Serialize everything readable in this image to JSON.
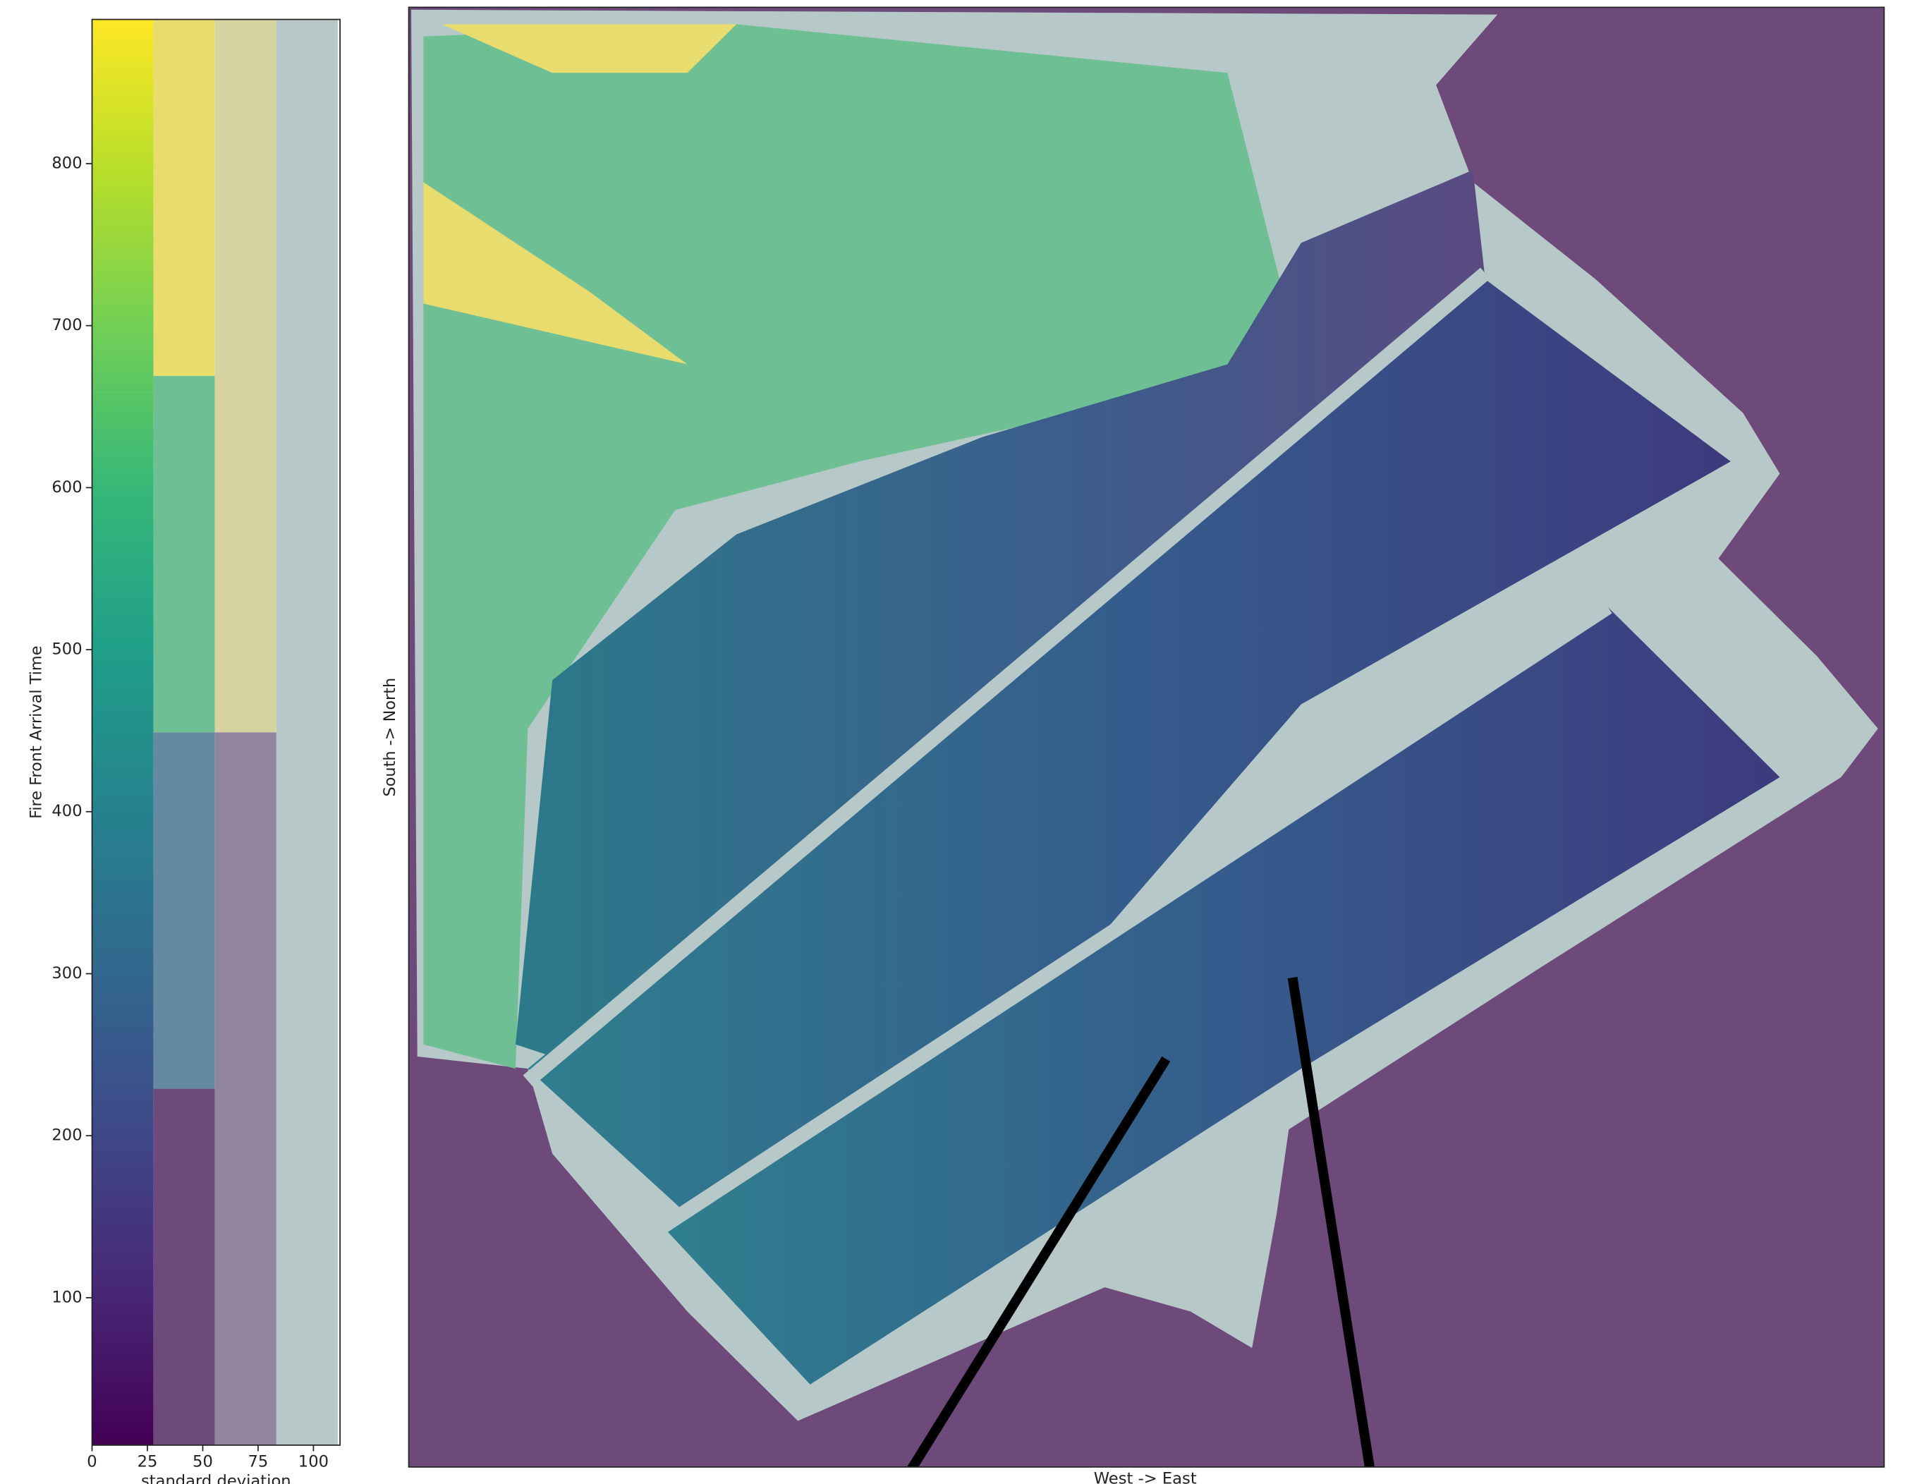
{
  "chart_data": [
    {
      "type": "bivariate_colorbar",
      "ylabel": "Fire Front Arrival Time",
      "xlabel": "standard deviation",
      "ylim": [
        9,
        889
      ],
      "yticks": [
        100,
        200,
        300,
        400,
        500,
        600,
        700,
        800
      ],
      "xlim": [
        0,
        112
      ],
      "xticks": [
        0,
        25,
        50,
        75,
        100
      ],
      "std_bins": [
        0,
        27.75,
        55.5,
        83.25,
        111
      ],
      "columns": [
        {
          "value_bins": [
            9,
            889
          ],
          "gradient": [
            "#440154",
            "#482878",
            "#3e4989",
            "#31688e",
            "#26828e",
            "#1f9e89",
            "#35b779",
            "#6ece58",
            "#b5de2b",
            "#fde725"
          ]
        },
        {
          "value_bins": [
            9,
            229,
            449,
            669,
            889
          ],
          "colors": [
            "#6d4a7a",
            "#6589a3",
            "#6ebf93",
            "#e8dc6f"
          ]
        },
        {
          "value_bins": [
            9,
            449,
            889
          ],
          "colors": [
            "#93849f",
            "#d6d3a0"
          ]
        },
        {
          "value_bins": [
            9,
            889
          ],
          "colors": [
            "#b7c8c8"
          ]
        }
      ]
    },
    {
      "type": "image",
      "xlabel": "West -> East",
      "ylabel": "South -> North"
    }
  ]
}
